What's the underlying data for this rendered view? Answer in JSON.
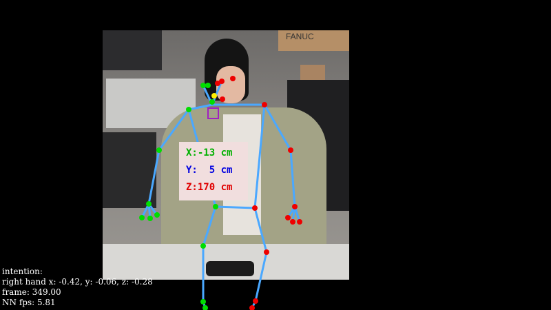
{
  "overlay_colors": {
    "skeleton_line": "#4aa8ff",
    "left_joint": "#00dd00",
    "right_joint": "#ee0000",
    "head_center": "#ffee00",
    "neck_marker": "#a020c0",
    "coord_x": "#00b000",
    "coord_y": "#0000e0",
    "coord_z": "#e00000",
    "coord_bg": "#f1dede",
    "info_text": "#ffffff"
  },
  "coords": {
    "x": "X:-13 cm",
    "y": "Y:  5 cm",
    "z": "Z:170 cm"
  },
  "info": {
    "intention": "intention:",
    "hand": "right hand x: -0.42, y: -0.06, z: -0.28",
    "frame": "frame: 349.00",
    "fps": "NN fps: 5.81"
  },
  "scene": {
    "box_label": "FANUC"
  }
}
